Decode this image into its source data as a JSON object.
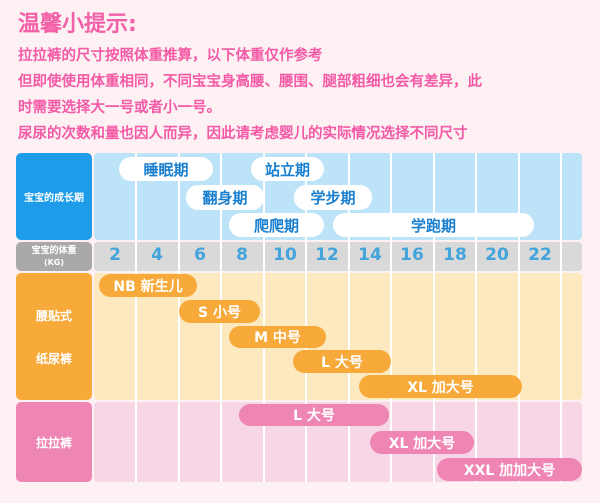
{
  "title": "温馨小提示:",
  "tips": [
    "拉拉裤的尺寸按照体重推算，以下体重仅作参考",
    "但即使使用体重相同，不同宝宝身高腰、腰围、腿部粗细也会有差异，此",
    "时需要选择大一号或者小一号。",
    "尿尿的次数和量也因人而异，因此请考虑婴儿的实际情况选择不同尺寸"
  ],
  "rows": {
    "growth_label": "宝宝的成长期",
    "weight_label": "宝宝的体重",
    "weight_unit": "(KG)",
    "tape_label_1": "腰贴式",
    "tape_label_2": "纸尿裤",
    "pants_label": "拉拉裤"
  },
  "weights": [
    "2",
    "4",
    "6",
    "8",
    "10",
    "12",
    "14",
    "16",
    "18",
    "20",
    "22"
  ],
  "growth_stages": [
    "睡眠期",
    "站立期",
    "翻身期",
    "学步期",
    "爬爬期",
    "学跑期"
  ],
  "tape_sizes": [
    "NB 新生儿",
    "S 小号",
    "M 中号",
    "L 大号",
    "XL 加大号"
  ],
  "pants_sizes": [
    "L 大号",
    "XL 加大号",
    "XXL 加加大号"
  ],
  "colors": {
    "title": "#f260a8",
    "growth": "#1e9be9",
    "weight": "#a9a9a9",
    "tape": "#f7a93a",
    "pants": "#ef85b3"
  }
}
